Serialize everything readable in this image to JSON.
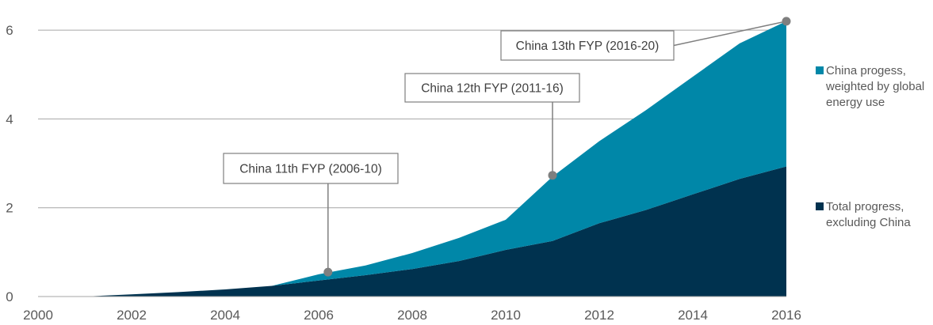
{
  "chart_data": {
    "type": "area",
    "stacked": true,
    "x": [
      2000,
      2001,
      2002,
      2003,
      2004,
      2005,
      2006,
      2007,
      2008,
      2009,
      2010,
      2011,
      2012,
      2013,
      2014,
      2015,
      2016
    ],
    "series": [
      {
        "name": "Total progress, excluding China",
        "color": "#00324f",
        "values": [
          0,
          0,
          0.05,
          0.1,
          0.16,
          0.24,
          0.36,
          0.48,
          0.62,
          0.8,
          1.05,
          1.25,
          1.65,
          1.95,
          2.3,
          2.65,
          2.93
        ]
      },
      {
        "name": "China progess, weighted by global energy use",
        "color": "#0087a8",
        "values": [
          0,
          0,
          0,
          0,
          0,
          0,
          0.14,
          0.22,
          0.36,
          0.52,
          0.68,
          1.45,
          1.85,
          2.25,
          2.65,
          3.05,
          3.27
        ]
      }
    ],
    "annotations": [
      {
        "label": "China 11th FYP (2006-10)",
        "x": 2006.2,
        "y": 0.55
      },
      {
        "label": "China 12th FYP (2011-16)",
        "x": 2011,
        "y": 2.73
      },
      {
        "label": "China 13th FYP (2016-20)",
        "x": 2016,
        "y": 6.2
      }
    ],
    "x_ticks": [
      "2000",
      "2002",
      "2004",
      "2006",
      "2008",
      "2010",
      "2012",
      "2014",
      "2016"
    ],
    "y_ticks": [
      "0",
      "2",
      "4",
      "6"
    ],
    "xlim": [
      2000,
      2016
    ],
    "ylim": [
      0,
      6.5
    ],
    "grid": "horizontal",
    "legend_position": "right",
    "title": "",
    "xlabel": "",
    "ylabel": ""
  }
}
